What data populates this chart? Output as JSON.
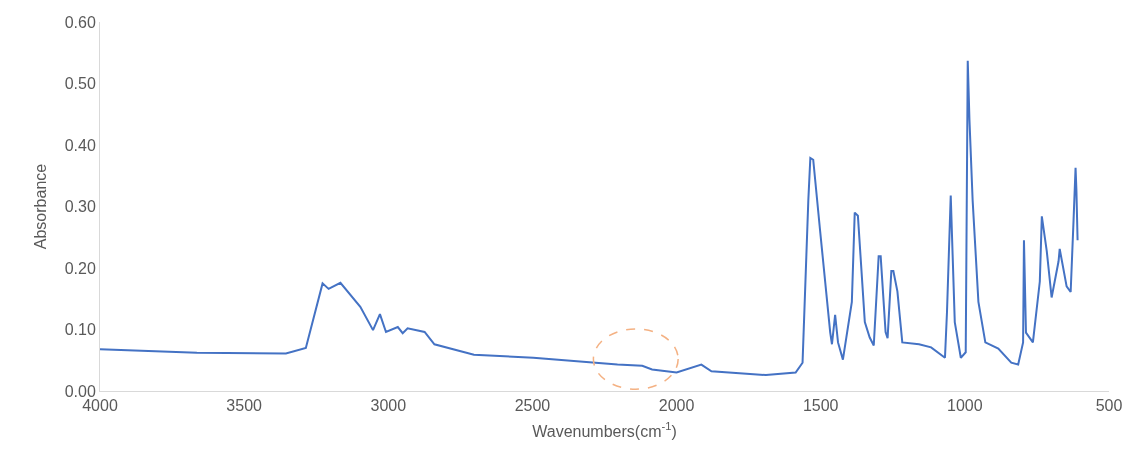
{
  "chart_data": {
    "type": "line",
    "xlabel": "Wavenumbers(cm$^{-1}$)",
    "ylabel": "Absorbance",
    "xlim": [
      4000,
      500
    ],
    "xticks": [
      4000,
      3500,
      3000,
      2500,
      2000,
      1500,
      1000,
      500
    ],
    "ylim": [
      0,
      0.6
    ],
    "yticks": [
      {
        "value": 0,
        "label": "0.00"
      },
      {
        "value": 0.1,
        "label": "0.10"
      },
      {
        "value": 0.2,
        "label": "0.20"
      },
      {
        "value": 0.3,
        "label": "0.30"
      },
      {
        "value": 0.4,
        "label": "0.40"
      },
      {
        "value": 0.5,
        "label": "0.50"
      },
      {
        "value": 0.6,
        "label": "0.60"
      }
    ],
    "grid": false,
    "marker": "none",
    "line_style": "solid",
    "series": [
      {
        "color": "#4472c4",
        "x": [
          4000,
          3664,
          3355,
          3286,
          3228,
          3207,
          3166,
          3097,
          3053,
          3029,
          3008,
          2967,
          2950,
          2933,
          2874,
          2840,
          2703,
          2497,
          2205,
          2119,
          2085,
          2000,
          1914,
          1879,
          1690,
          1587,
          1563,
          1543,
          1536,
          1526,
          1502,
          1467,
          1461,
          1450,
          1440,
          1423,
          1392,
          1382,
          1371,
          1347,
          1330,
          1316,
          1299,
          1292,
          1275,
          1268,
          1255,
          1248,
          1234,
          1217,
          1159,
          1117,
          1069,
          1062,
          1049,
          1035,
          1014,
          997,
          990,
          984,
          973,
          953,
          929,
          884,
          839,
          815,
          798,
          795,
          788,
          764,
          740,
          733,
          716,
          699,
          675,
          671,
          647,
          633,
          623,
          616,
          613,
          609
        ],
        "values": [
          0.068,
          0.062,
          0.061,
          0.07,
          0.175,
          0.166,
          0.176,
          0.137,
          0.099,
          0.125,
          0.096,
          0.104,
          0.094,
          0.102,
          0.096,
          0.076,
          0.059,
          0.054,
          0.043,
          0.041,
          0.035,
          0.03,
          0.043,
          0.032,
          0.026,
          0.03,
          0.046,
          0.31,
          0.379,
          0.376,
          0.26,
          0.095,
          0.076,
          0.124,
          0.079,
          0.051,
          0.145,
          0.29,
          0.285,
          0.112,
          0.087,
          0.074,
          0.219,
          0.219,
          0.096,
          0.086,
          0.195,
          0.195,
          0.162,
          0.079,
          0.076,
          0.071,
          0.054,
          0.128,
          0.318,
          0.112,
          0.054,
          0.063,
          0.537,
          0.44,
          0.31,
          0.145,
          0.079,
          0.069,
          0.046,
          0.043,
          0.079,
          0.245,
          0.095,
          0.079,
          0.178,
          0.284,
          0.228,
          0.152,
          0.211,
          0.231,
          0.17,
          0.161,
          0.277,
          0.363,
          0.326,
          0.245
        ]
      }
    ]
  }
}
